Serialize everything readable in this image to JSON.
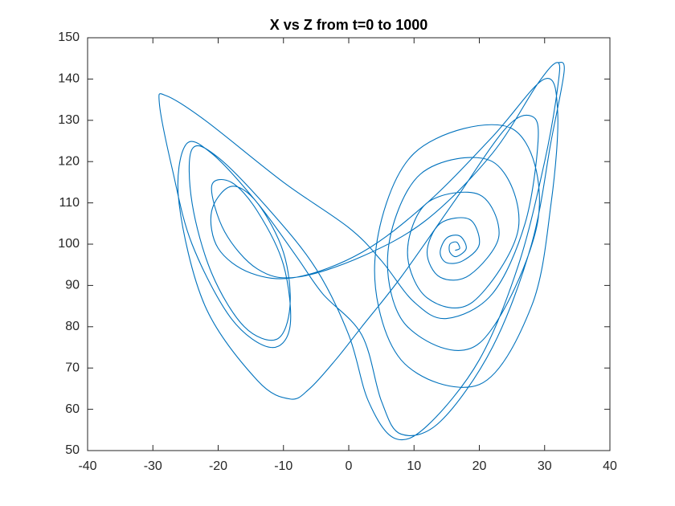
{
  "chart_data": {
    "type": "line",
    "title": "X vs Z from t=0 to 1000",
    "x": [
      16.3,
      17,
      16.5,
      15.5,
      15.5,
      16.5,
      18,
      17,
      15,
      14,
      15,
      17.5,
      20,
      18.5,
      14,
      12,
      14,
      18.5,
      23,
      20,
      12,
      9,
      12,
      19,
      26,
      22,
      11,
      6,
      9,
      20,
      29,
      25,
      10,
      4,
      8,
      20,
      28,
      31,
      32,
      30,
      22,
      12,
      2,
      -8,
      -15,
      -20,
      -21,
      -18,
      -14,
      -10,
      -9,
      -11,
      -16,
      -21,
      -24,
      -24,
      -20,
      -12,
      -5,
      0,
      3,
      7,
      12,
      20,
      26,
      30,
      32,
      32,
      29,
      22,
      12,
      2,
      -8,
      -14,
      -19,
      -21,
      -18,
      -14,
      -10,
      -9,
      -12,
      -18,
      -24,
      -27,
      -29,
      -28,
      -22,
      -10,
      0,
      5,
      10,
      15,
      22,
      27,
      29,
      28,
      24,
      16,
      8,
      2,
      -2,
      -6,
      -9,
      -14,
      -22,
      -26,
      -25,
      -21,
      -14,
      -8,
      -4,
      2,
      5,
      8,
      14,
      22,
      28,
      31,
      33,
      32
    ],
    "series": [
      {
        "color": "#0072bd",
        "values": [
          98.5,
          99,
          100.5,
          100,
          98,
          97,
          99,
          102,
          101.5,
          98,
          95.5,
          96,
          100,
          106,
          105,
          98,
          92,
          92.5,
          102,
          112,
          110,
          98,
          87,
          86,
          104,
          120,
          117,
          98,
          80,
          76,
          106,
          128,
          122,
          96,
          72,
          66,
          85,
          110,
          132,
          140,
          126,
          110,
          98,
          92,
          93,
          99,
          108,
          114,
          110,
          98,
          85,
          77,
          80,
          93,
          110,
          123,
          121,
          108,
          94,
          78,
          62,
          53,
          56,
          72,
          95,
          120,
          138,
          144,
          139,
          122,
          106,
          97,
          92,
          94,
          103,
          114,
          115,
          108,
          95,
          80,
          75,
          82,
          100,
          118,
          134,
          136,
          130,
          115,
          104,
          96,
          86,
          82,
          88,
          105,
          125,
          131,
          128,
          110,
          92,
          80,
          72,
          65,
          62.5,
          67,
          85,
          110,
          124,
          122,
          110,
          97,
          88,
          78,
          62,
          54,
          57,
          75,
          100,
          125,
          142,
          144
        ]
      }
    ],
    "xlim": [
      -40,
      40
    ],
    "xticks": [
      -40,
      -30,
      -20,
      -10,
      0,
      10,
      20,
      30,
      40
    ],
    "ylim": [
      50,
      150
    ],
    "yticks": [
      50,
      60,
      70,
      80,
      90,
      100,
      110,
      120,
      130,
      140,
      150
    ]
  }
}
